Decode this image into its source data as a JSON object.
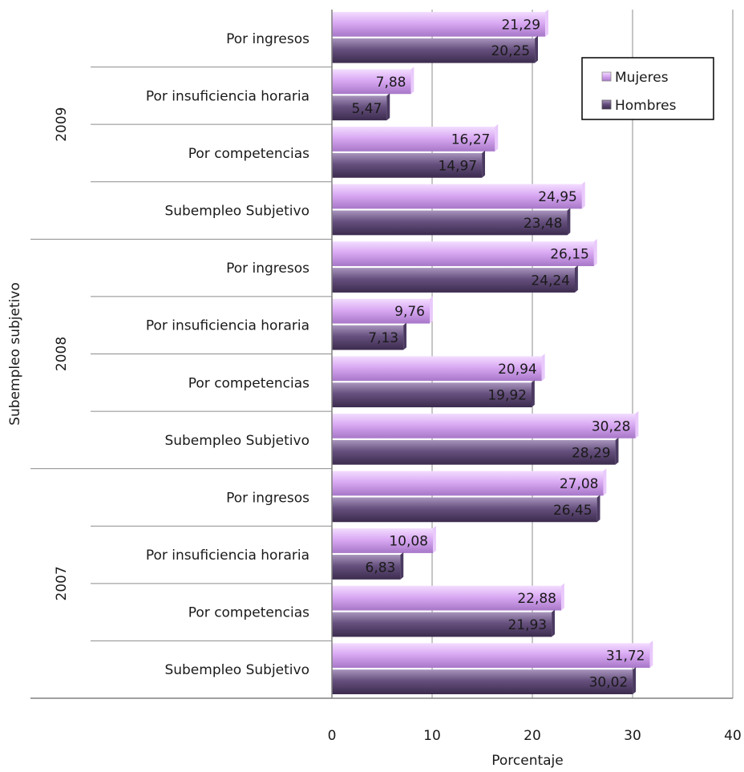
{
  "chart_data": {
    "type": "bar",
    "orientation": "horizontal",
    "xlabel": "Porcentaje",
    "ylabel": "Subempleo subjetivo",
    "xlim": [
      0,
      40
    ],
    "xticks": [
      0,
      10,
      20,
      30,
      40
    ],
    "grid": true,
    "legend_position": "top-right",
    "series": [
      {
        "name": "Mujeres",
        "color": "#d6a6f0"
      },
      {
        "name": "Hombres",
        "color": "#5c4872"
      }
    ],
    "groups": [
      {
        "year": "2009",
        "categories": [
          {
            "label": "Por ingresos",
            "values": [
              "21,29",
              "20,25"
            ]
          },
          {
            "label": "Por insuficiencia horaria",
            "values": [
              "7,88",
              "5,47"
            ]
          },
          {
            "label": "Por competencias",
            "values": [
              "16,27",
              "14,97"
            ]
          },
          {
            "label": "Subempleo Subjetivo",
            "values": [
              "24,95",
              "23,48"
            ]
          }
        ]
      },
      {
        "year": "2008",
        "categories": [
          {
            "label": "Por ingresos",
            "values": [
              "26,15",
              "24,24"
            ]
          },
          {
            "label": "Por insuficiencia horaria",
            "values": [
              "9,76",
              "7,13"
            ]
          },
          {
            "label": "Por competencias",
            "values": [
              "20,94",
              "19,92"
            ]
          },
          {
            "label": "Subempleo Subjetivo",
            "values": [
              "30,28",
              "28,29"
            ]
          }
        ]
      },
      {
        "year": "2007",
        "categories": [
          {
            "label": "Por ingresos",
            "values": [
              "27,08",
              "26,45"
            ]
          },
          {
            "label": "Por insuficiencia horaria",
            "values": [
              "10,08",
              "6,83"
            ]
          },
          {
            "label": "Por competencias",
            "values": [
              "22,88",
              "21,93"
            ]
          },
          {
            "label": "Subempleo Subjetivo",
            "values": [
              "31,72",
              "30,02"
            ]
          }
        ]
      }
    ]
  }
}
